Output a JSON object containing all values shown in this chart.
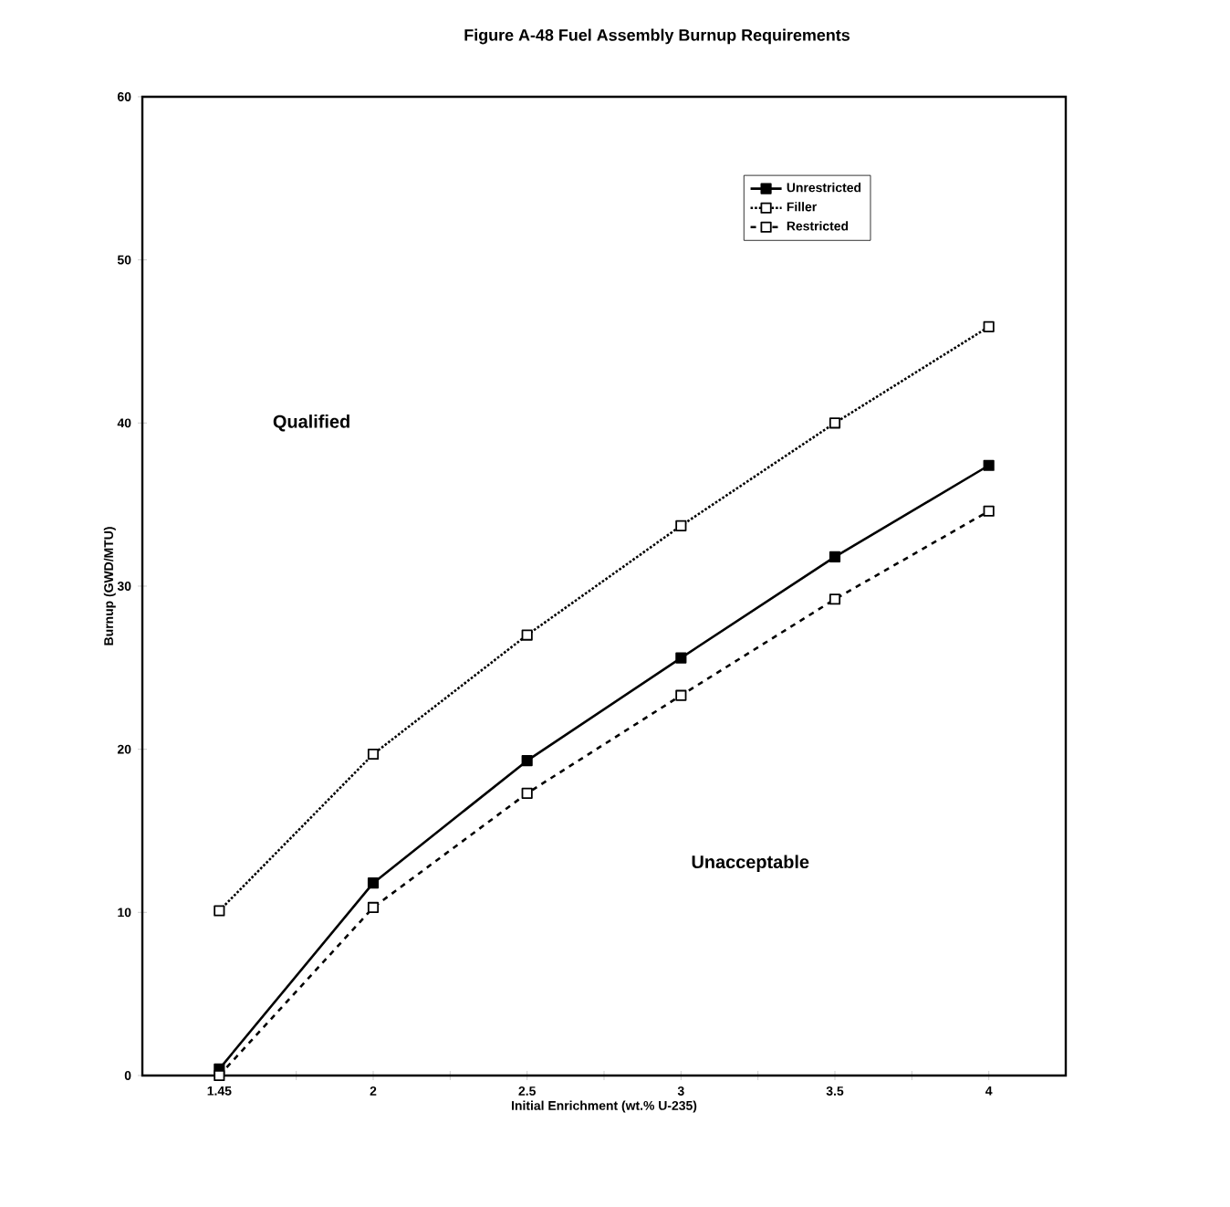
{
  "chart_data": {
    "type": "line",
    "title": "Figure A-48     Fuel Assembly Burnup Requirements",
    "xlabel": "Initial Enrichment (wt.% U-235)",
    "ylabel": "Burnup (GWD/MTU)",
    "categories": [
      "1.45",
      "2",
      "2.5",
      "3",
      "3.5",
      "4"
    ],
    "series": [
      {
        "name": "Unrestricted",
        "color": "#000000",
        "line_style": "solid",
        "values": [
          0.4,
          11.8,
          19.3,
          25.6,
          31.8,
          37.4
        ]
      },
      {
        "name": "Filler",
        "color": "#000000",
        "line_style": "dotted",
        "values": [
          10.1,
          19.7,
          27.0,
          33.7,
          40.0,
          45.9
        ]
      },
      {
        "name": "Restricted",
        "color": "#000000",
        "line_style": "dashed",
        "values": [
          0.0,
          10.3,
          17.3,
          23.3,
          29.2,
          34.6
        ]
      }
    ],
    "ylim": [
      0,
      60
    ],
    "yticks": [
      0,
      10,
      20,
      30,
      40,
      50,
      60
    ],
    "marker": "square",
    "legend": "top right",
    "grid": false,
    "annotations": [
      "Qualified",
      "Unacceptable"
    ]
  }
}
